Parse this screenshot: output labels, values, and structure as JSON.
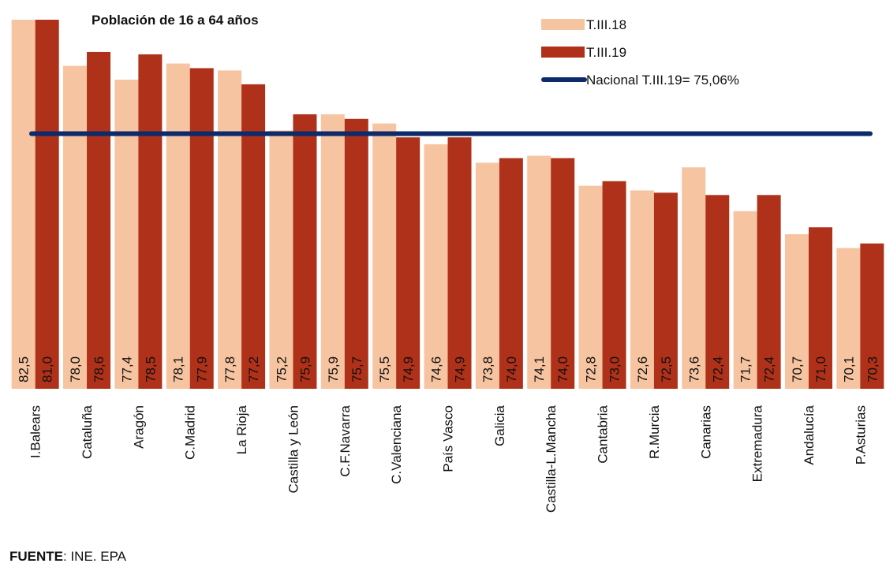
{
  "chart_data": {
    "type": "bar",
    "title": "Población de 16 a 64 años",
    "categories": [
      "I.Balears",
      "Cataluña",
      "Aragón",
      "C.Madrid",
      "La Rioja",
      "Castilla y León",
      "C.F.Navarra",
      "C.Valenciana",
      "País Vasco",
      "Galicia",
      "Castilla-L.Mancha",
      "Cantabria",
      "R.Murcia",
      "Canarias",
      "Extremadura",
      "Andalucía",
      "P.Asturias"
    ],
    "series": [
      {
        "name": "T.III.18",
        "color": "#f6c4a0",
        "values": [
          82.5,
          78.0,
          77.4,
          78.1,
          77.8,
          75.2,
          75.9,
          75.5,
          74.6,
          73.8,
          74.1,
          72.8,
          72.6,
          73.6,
          71.7,
          70.7,
          70.1
        ],
        "value_labels": [
          "82,5",
          "78,0",
          "77,4",
          "78,1",
          "77,8",
          "75,2",
          "75,9",
          "75,5",
          "74,6",
          "73,8",
          "74,1",
          "72,8",
          "72,6",
          "73,6",
          "71,7",
          "70,7",
          "70,1"
        ]
      },
      {
        "name": "T.III.19",
        "color": "#b03119",
        "values": [
          81.0,
          78.6,
          78.5,
          77.9,
          77.2,
          75.9,
          75.7,
          74.9,
          74.9,
          74.0,
          74.0,
          73.0,
          72.5,
          72.4,
          72.4,
          71.0,
          70.3
        ],
        "value_labels": [
          "81,0",
          "78,6",
          "78,5",
          "77,9",
          "77,2",
          "75,9",
          "75,7",
          "74,9",
          "74,9",
          "74,0",
          "74,0",
          "73,0",
          "72,5",
          "72,4",
          "72,4",
          "71,0",
          "70,3"
        ]
      }
    ],
    "reference_line": {
      "name": "Nacional T.III.19= 75,06%",
      "value": 75.06,
      "color": "#0d2b6b"
    },
    "ylim": [
      64,
      80
    ],
    "source": {
      "label": "FUENTE",
      "text": ": INE. EPA"
    }
  }
}
